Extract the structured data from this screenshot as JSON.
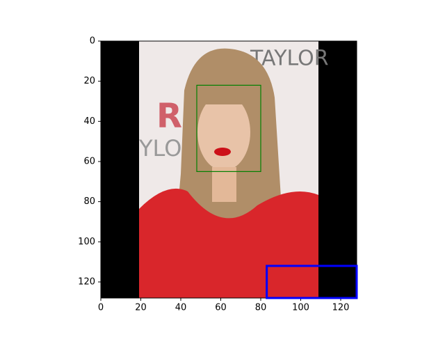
{
  "chart_data": {
    "type": "image",
    "xlim": [
      0,
      128
    ],
    "ylim": [
      128,
      0
    ],
    "xticks": [
      0,
      20,
      40,
      60,
      80,
      100,
      120
    ],
    "yticks": [
      0,
      20,
      40,
      60,
      80,
      100,
      120
    ],
    "boxes": [
      {
        "color": "green",
        "x": [
          48,
          80
        ],
        "y": [
          22,
          65
        ]
      },
      {
        "color": "blue",
        "x": [
          83,
          128
        ],
        "y": [
          112,
          128
        ]
      }
    ]
  }
}
